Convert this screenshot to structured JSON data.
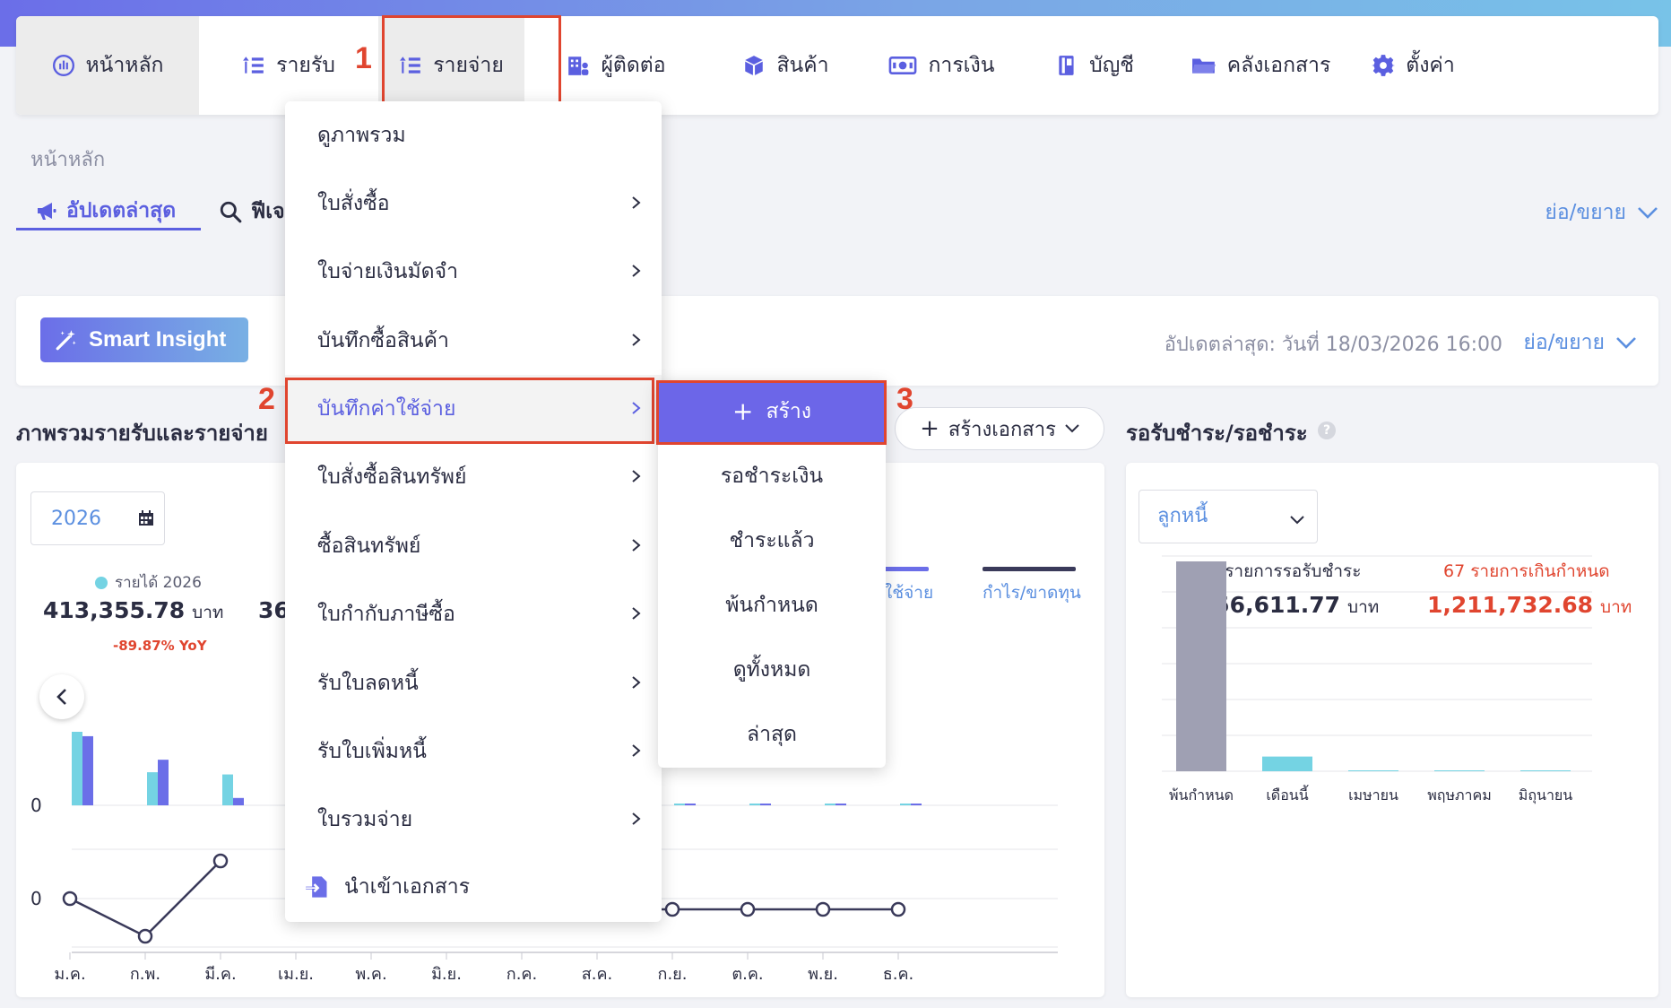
{
  "nav": {
    "items": [
      {
        "label": "หน้าหลัก",
        "icon": "dashboard-icon"
      },
      {
        "label": "รายรับ",
        "icon": "income-list-icon"
      },
      {
        "label": "รายจ่าย",
        "icon": "expense-list-icon"
      },
      {
        "label": "ผู้ติดต่อ",
        "icon": "contacts-building-icon"
      },
      {
        "label": "สินค้า",
        "icon": "product-box-icon"
      },
      {
        "label": "การเงิน",
        "icon": "money-icon"
      },
      {
        "label": "บัญชี",
        "icon": "accounting-book-icon"
      },
      {
        "label": "คลังเอกสาร",
        "icon": "folder-icon"
      },
      {
        "label": "ตั้งค่า",
        "icon": "gear-icon"
      }
    ]
  },
  "step_labels": [
    "1",
    "2",
    "3"
  ],
  "breadcrumb": "หน้าหลัก",
  "tabs": {
    "latest": "อัปเดตล่าสุด",
    "feed": "ฟีเจ",
    "collapse": "ย่อ/ขยาย"
  },
  "insight": {
    "button": "Smart Insight",
    "updated": "อัปเดตล่าสุด: วันที่ 18/03/2026 16:00",
    "collapse": "ย่อ/ขยาย"
  },
  "overview": {
    "title": "ภาพรวมรายรับและรายจ่าย",
    "create_doc": "สร้างเอกสาร",
    "year": "2026",
    "legend_income": "รายได้ 2026",
    "income_value": "413,355.78",
    "income_unit": "บาท",
    "income_yoy": "-89.87% YoY",
    "second_value_partial": "36",
    "legend_expense_partial": "ใช้จ่าย",
    "legend_profit": "กำไร/ขาดทุน",
    "zero_label_top": "0",
    "zero_label_bottom": "0"
  },
  "chart_data": {
    "type": "bar",
    "categories": [
      "ม.ค.",
      "ก.พ.",
      "มี.ค.",
      "เม.ย.",
      "พ.ค.",
      "มิ.ย.",
      "ก.ค.",
      "ส.ค.",
      "ก.ย.",
      "ต.ค.",
      "พ.ย.",
      "ธ.ค."
    ],
    "series": [
      {
        "name": "รายได้ 2026",
        "values": [
          1.0,
          0.45,
          0.42,
          null,
          null,
          null,
          null,
          0.01,
          0.01,
          0.01,
          0.01,
          0.01
        ]
      },
      {
        "name": "ใช้จ่าย",
        "values": [
          0.94,
          0.62,
          0.1,
          null,
          null,
          null,
          null,
          0.01,
          0.01,
          0.01,
          0.01,
          0.01
        ]
      }
    ],
    "line_series": {
      "name": "กำไร/ขาดทุน",
      "values": [
        0,
        -0.7,
        0.7,
        null,
        null,
        null,
        null,
        -0.2,
        -0.2,
        -0.2,
        -0.2,
        -0.2
      ]
    }
  },
  "receivable": {
    "title": "รอรับชำระ/รอชำระ",
    "select": "ลูกหนี้",
    "pending_count": "73 รายการรอรับชำระ",
    "pending_amount": "1,256,611.77",
    "overdue_count": "67 รายการเกินกำหนด",
    "overdue_amount": "1,211,732.68",
    "unit": "บาท",
    "chart": {
      "type": "bar",
      "categories": [
        "พ้นกำหนด",
        "เดือนนี้",
        "เมษายน",
        "พฤษภาคม",
        "มิถุนายน"
      ],
      "values": [
        1.0,
        0.07,
        0.0,
        0.0,
        0.0
      ]
    }
  },
  "dropdown": {
    "items": [
      {
        "label": "ดูภาพรวม",
        "arrow": false
      },
      {
        "label": "ใบสั่งซื้อ",
        "arrow": true
      },
      {
        "label": "ใบจ่ายเงินมัดจำ",
        "arrow": true
      },
      {
        "label": "บันทึกซื้อสินค้า",
        "arrow": true
      },
      {
        "label": "บันทึกค่าใช้จ่าย",
        "arrow": true
      },
      {
        "label": "ใบสั่งซื้อสินทรัพย์",
        "arrow": true
      },
      {
        "label": "ซื้อสินทรัพย์",
        "arrow": true
      },
      {
        "label": "ใบกำกับภาษีซื้อ",
        "arrow": true
      },
      {
        "label": "รับใบลดหนี้",
        "arrow": true
      },
      {
        "label": "รับใบเพิ่มหนี้",
        "arrow": true
      },
      {
        "label": "ใบรวมจ่าย",
        "arrow": true
      },
      {
        "label": "นำเข้าเอกสาร",
        "arrow": false
      }
    ]
  },
  "submenu": {
    "create": "สร้าง",
    "items": [
      "รอชำระเงิน",
      "ชำระแล้ว",
      "พ้นกำหนด",
      "ดูทั้งหมด",
      "ล่าสุด"
    ]
  },
  "colors": {
    "accent": "#5b5fe0",
    "income": "#74d3e3",
    "expense": "#6b6ee8",
    "profit": "#3a3a5a",
    "overdue": "#e0452f",
    "red_annotation": "#e0452f"
  }
}
